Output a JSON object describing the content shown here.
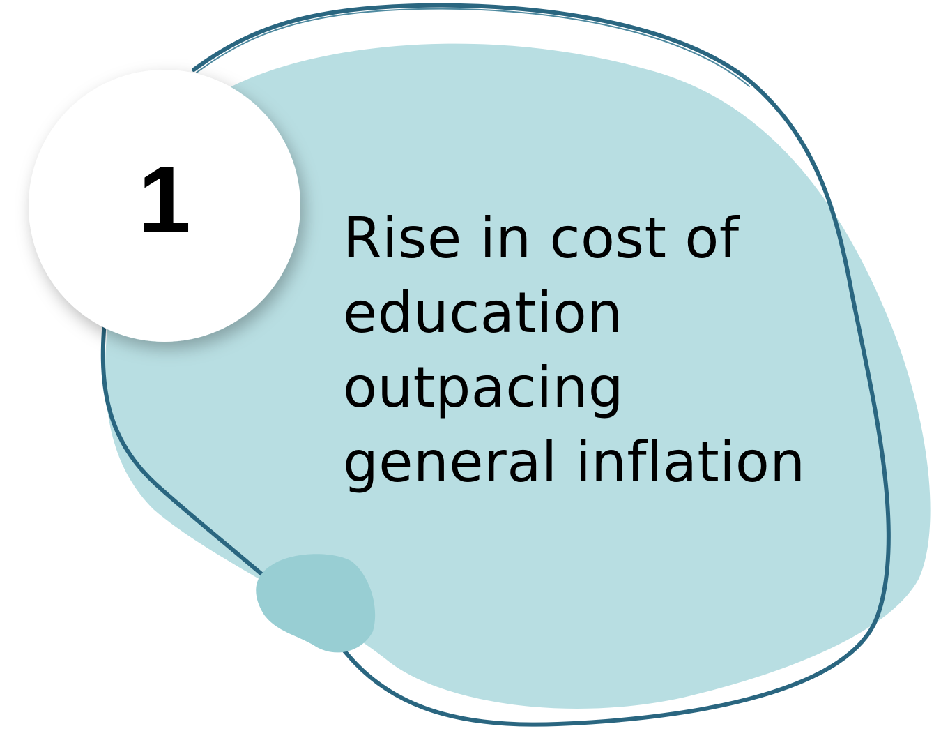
{
  "badge": {
    "number": "1"
  },
  "heading": {
    "lines": [
      "Rise in cost of",
      "education",
      "outpacing",
      "general inflation"
    ]
  },
  "colors": {
    "blob_fill": "#b8dee2",
    "outline_stroke": "#2a6680",
    "accent_blob": "#98ced3",
    "badge_fill": "#ffffff",
    "text": "#000000"
  }
}
